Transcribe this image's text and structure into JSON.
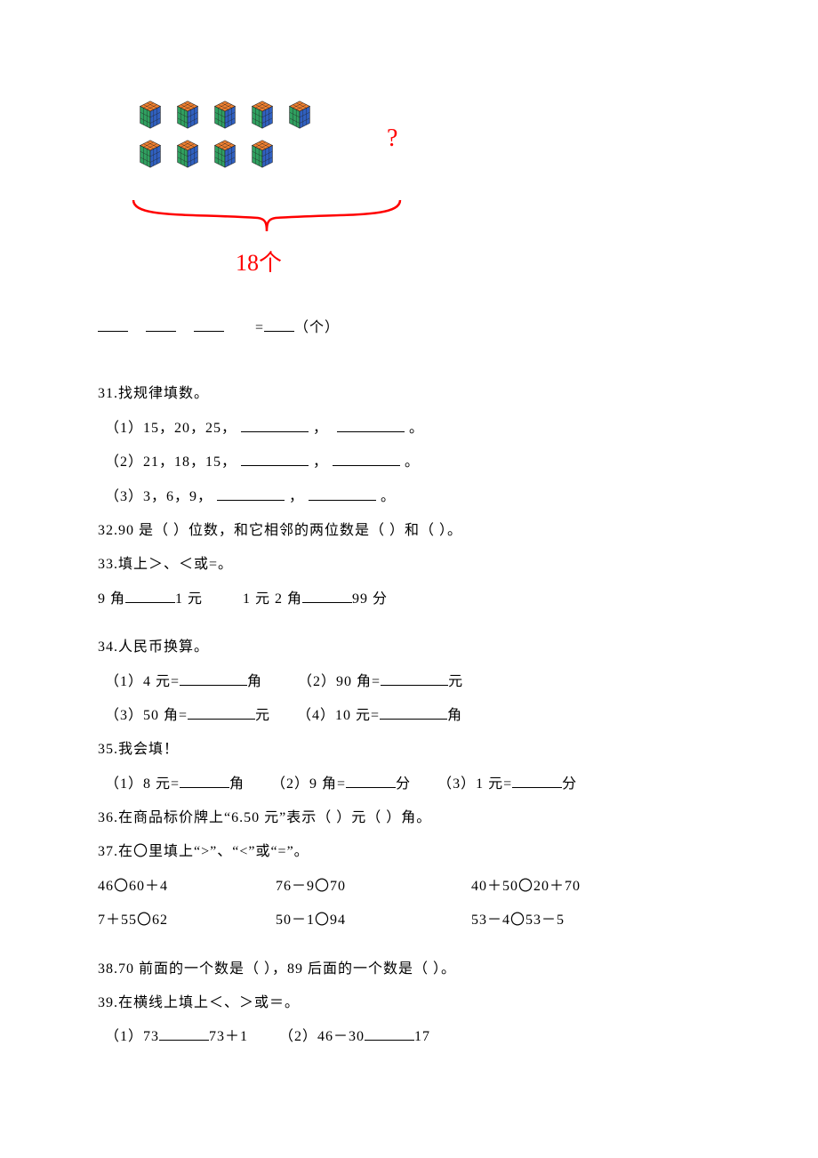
{
  "diagram": {
    "row1_cubes": 5,
    "row2_cubes": 4,
    "question_mark": "?",
    "total_label": "18个",
    "brace_color": "#ff0000",
    "label_color": "#ff0000",
    "cube_colors": {
      "top": "#f08030",
      "left": "#30a060",
      "right": "#3060c0",
      "line": "#202020"
    }
  },
  "eq_blank": {
    "eq": "=",
    "unit": "（个）"
  },
  "q31": {
    "title": "31.找规律填数。",
    "s1": "（1）15，20，25，",
    "s2": "（2）21，18，15，",
    "s3": "（3）3，6，9，",
    "comma": "，",
    "period": "。"
  },
  "q32": "32.90 是（    ）位数，和它相邻的两位数是（    ）和（    ）。",
  "q33": {
    "title": "33.填上＞、＜或=。",
    "a_left": "9 角",
    "a_right": "1 元",
    "b_left": "1 元 2 角",
    "b_right": "99 分"
  },
  "q34": {
    "title": "34.人民币换算。",
    "s1l": "（1）4 元=",
    "s1r": "角",
    "s2l": "（2）90 角=",
    "s2r": "元",
    "s3l": "（3）50 角=",
    "s3r": "元",
    "s4l": "（4）10 元=",
    "s4r": "角"
  },
  "q35": {
    "title": "35.我会填！",
    "s1l": "（1）8 元=",
    "s1r": "角",
    "s2l": "（2）9 角=",
    "s2r": "分",
    "s3l": "（3）1 元=",
    "s3r": "分"
  },
  "q36": "36.在商品标价牌上“6.50 元”表示（    ）元（    ）角。",
  "q37": {
    "title": "37.在〇里填上“>”、“<”或“=”。",
    "r1": [
      "46〇60＋4",
      "76－9〇70",
      "40＋50〇20＋70"
    ],
    "r2": [
      "7＋55〇62",
      "50－1〇94",
      "53－4〇53－5"
    ]
  },
  "q38": "38.70 前面的一个数是（    ），89 后面的一个数是（    ）。",
  "q39": {
    "title": "39.在横线上填上＜、＞或＝。",
    "s1l": "（1）73",
    "s1r": "73＋1",
    "s2l": "（2）46－30",
    "s2r": "17"
  }
}
